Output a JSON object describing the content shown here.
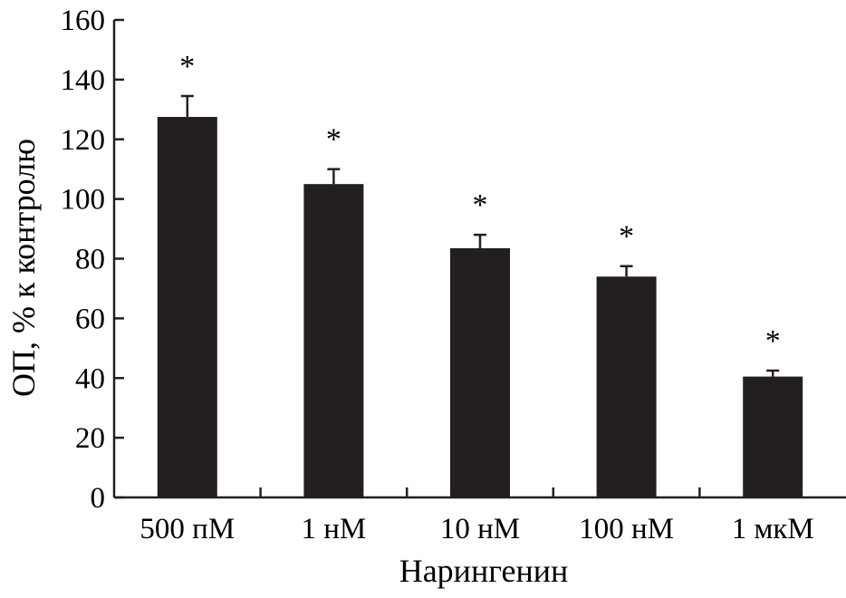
{
  "chart_data": {
    "type": "bar",
    "categories": [
      "500 пМ",
      "1 нМ",
      "10 нМ",
      "100 нМ",
      "1 мкМ"
    ],
    "values": [
      127.5,
      105,
      83.5,
      74,
      40.5
    ],
    "errors": [
      7,
      5,
      4.5,
      3.5,
      2
    ],
    "significance": [
      "*",
      "*",
      "*",
      "*",
      "*"
    ],
    "title": "",
    "xlabel": "Нарингенин",
    "ylabel": "ОП, % к контролю",
    "ylim": [
      0,
      160
    ],
    "yticks": [
      0,
      20,
      40,
      60,
      80,
      100,
      120,
      140,
      160
    ],
    "grid": false,
    "legend": "none",
    "colors": {
      "bar": "#231f20",
      "axis": "#231f20",
      "text": "#000000"
    }
  }
}
